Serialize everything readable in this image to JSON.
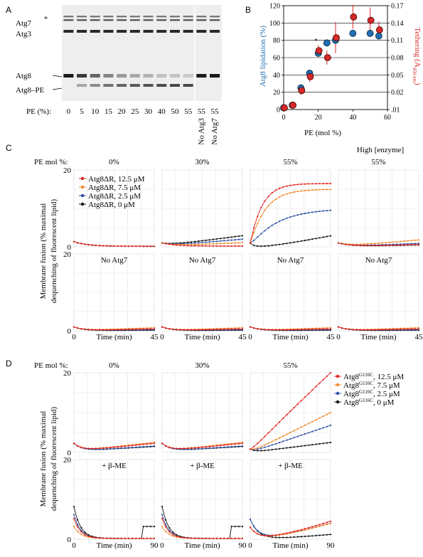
{
  "panel_labels": {
    "a": "A",
    "b": "B",
    "c": "C",
    "d": "D"
  },
  "panel_a": {
    "band_labels": {
      "atg7": "Atg7",
      "star": "*",
      "atg3": "Atg3",
      "atg8": "Atg8",
      "atg8pe": "Atg8–PE"
    },
    "pe_label": "PE (%):",
    "lanes": [
      "0",
      "5",
      "10",
      "15",
      "20",
      "25",
      "30",
      "40",
      "50",
      "55",
      "55",
      "55"
    ],
    "lane_notes": [
      "No Atg3",
      "No Atg7"
    ],
    "lane_pe_fraction": [
      0,
      0.15,
      0.35,
      0.5,
      0.6,
      0.68,
      0.72,
      0.78,
      0.8,
      0.82,
      0,
      0
    ]
  },
  "chart_b": {
    "type": "scatter",
    "xlabel": "PE (mol %)",
    "ylabel_left": "Atg8 lipidation (%)",
    "ylabel_right": "Tethering (A450 nm)",
    "xticks": [
      "0",
      "20",
      "40",
      "60"
    ],
    "yticks_left": [
      "0",
      "20",
      "40",
      "60",
      "80",
      "100",
      "120"
    ],
    "yticks_right": [
      ".01",
      "0.02",
      "0.05",
      "0.08",
      "0.11",
      "0.14",
      "0.17"
    ],
    "star": "*",
    "colors": {
      "lipidation": "#1f6fb5",
      "tethering": "#d62a2a"
    },
    "lipidation": {
      "x": [
        0,
        5,
        10,
        15,
        20,
        25,
        30,
        40,
        50,
        55
      ],
      "y": [
        2,
        5,
        25,
        42,
        65,
        77,
        80,
        88,
        88,
        85
      ]
    },
    "tethering": {
      "x": [
        0,
        5,
        10,
        15,
        20,
        25,
        30,
        40,
        50,
        55
      ],
      "y": [
        2,
        5,
        22,
        38,
        68,
        60,
        83,
        107,
        103,
        92
      ],
      "err": [
        2,
        3,
        5,
        6,
        6,
        8,
        18,
        14,
        15,
        10
      ]
    }
  },
  "panel_c": {
    "pe_label": "PE mol %:",
    "col_titles": [
      "0%",
      "30%",
      "55%",
      "55%"
    ],
    "high_enzyme": "High [enzyme]",
    "row2_titles": [
      "No Atg7",
      "No Atg7",
      "No Atg7",
      "No Atg7"
    ],
    "ylabel_1": "Membrane fusion (% maximal",
    "ylabel_2": "dequenching of fluorescent lipid)",
    "xlabel": "Time (min)",
    "ytick_top": "20",
    "ytick_zero": "0",
    "xtick_start": "0",
    "xtick_end": "45",
    "legend": [
      {
        "label": "Atg8ΔR, 12.5 μM",
        "color": "#e0201f"
      },
      {
        "label": "Atg8ΔR, 7.5 μM",
        "color": "#f08a2c"
      },
      {
        "label": "Atg8ΔR, 2.5 μM",
        "color": "#2b4fa3"
      },
      {
        "label": "Atg8ΔR, 0 μM",
        "color": "#111111"
      }
    ]
  },
  "panel_d": {
    "pe_label": "PE mol %:",
    "col_titles": [
      "0%",
      "30%",
      "55%"
    ],
    "row2_titles": [
      "+ β-ME",
      "+ β-ME",
      "+ β-ME"
    ],
    "ylabel_1": "Membrane fusion (% maximal",
    "ylabel_2": "dequenching of fluorescent lipid)",
    "xlabel": "Time (min)",
    "ytick_top": "20",
    "ytick_zero": "0",
    "xtick_start": "0",
    "xtick_end": "90",
    "legend": [
      {
        "base": "Atg8",
        "sup": "G116C",
        "label": ", 12.5 μM",
        "color": "#e0201f"
      },
      {
        "base": "Atg8",
        "sup": "G116C",
        "label": ", 7.5 μM",
        "color": "#f08a2c"
      },
      {
        "base": "Atg8",
        "sup": "G116C",
        "label": ", 2.5 μM",
        "color": "#2b4fa3"
      },
      {
        "base": "Atg8",
        "sup": "G116C",
        "label": ", 0 μM",
        "color": "#111111"
      }
    ]
  }
}
